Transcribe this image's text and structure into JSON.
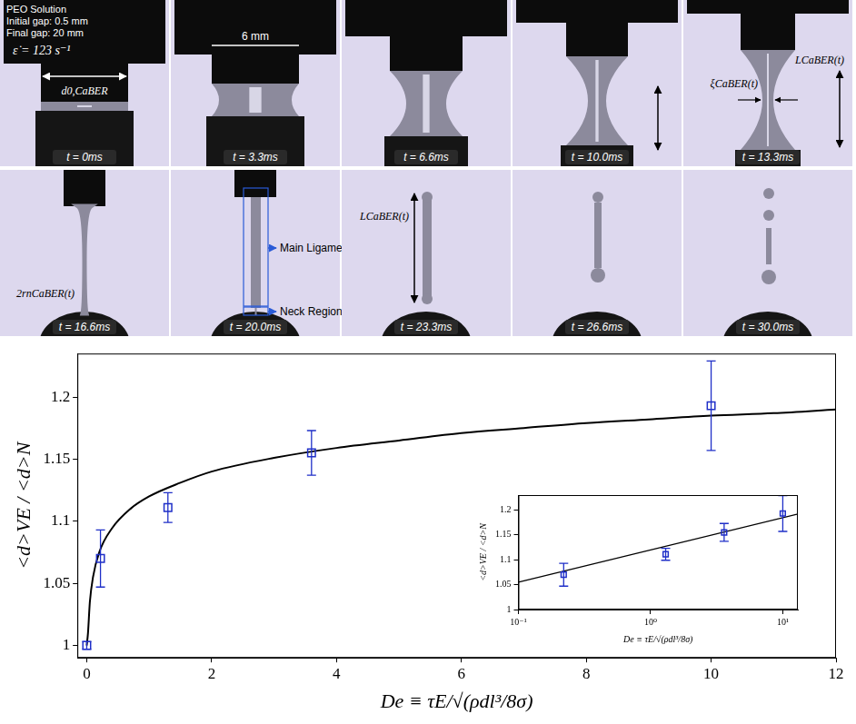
{
  "photos": {
    "header": [
      "PEO Solution",
      "Initial gap: 0.5 mm",
      "Final gap: 20 mm"
    ],
    "strain_rate": "ε̇ = 123 s⁻¹",
    "frames": [
      {
        "time": "t = 0ms",
        "labels": [
          "d0,CaBER"
        ]
      },
      {
        "time": "t = 3.3ms",
        "labels": [
          "6 mm"
        ]
      },
      {
        "time": "t = 6.6ms"
      },
      {
        "time": "t = 10.0ms"
      },
      {
        "time": "t = 13.3ms",
        "labels": [
          "ξCaBER(t)",
          "LCaBER(t)"
        ]
      },
      {
        "time": "t = 16.6ms",
        "labels": [
          "2rnCaBER(t)"
        ]
      },
      {
        "time": "t = 20.0ms",
        "labels": [
          "Main Ligament",
          "Neck Region"
        ]
      },
      {
        "time": "t = 23.3ms",
        "labels": [
          "LCaBER(t)"
        ]
      },
      {
        "time": "t = 26.6ms"
      },
      {
        "time": "t = 30.0ms"
      }
    ]
  },
  "chart_data": [
    {
      "type": "scatter",
      "x_label": "De ≡ τE/√(ρdl³/8σ)",
      "y_label": "<d>VE / <d>N",
      "xlim": [
        -0.15,
        12
      ],
      "xticks": [
        0,
        2,
        4,
        6,
        8,
        10,
        12
      ],
      "ylim": [
        0.99,
        1.235
      ],
      "yticks": [
        1,
        1.05,
        1.1,
        1.15,
        1.2
      ],
      "grid": false,
      "series": [
        {
          "type": "scatter",
          "color": "#1f2fc8",
          "marker": "square",
          "x": [
            0,
            0.22,
            1.3,
            3.6,
            10
          ],
          "values": [
            1.0,
            1.07,
            1.111,
            1.155,
            1.193
          ],
          "error": [
            0.003,
            0.023,
            0.012,
            0.018,
            0.036
          ]
        },
        {
          "type": "line",
          "color": "#000000",
          "line_style": "solid",
          "x": [
            0,
            0.02,
            0.05,
            0.1,
            0.2,
            0.4,
            0.7,
            1,
            1.5,
            2,
            3,
            4,
            5,
            6,
            7,
            8,
            9,
            10,
            11,
            12
          ],
          "values": [
            1.0,
            1.01,
            1.035,
            1.055,
            1.075,
            1.094,
            1.11,
            1.12,
            1.131,
            1.14,
            1.151,
            1.159,
            1.165,
            1.171,
            1.175,
            1.179,
            1.182,
            1.185,
            1.187,
            1.19
          ]
        }
      ]
    },
    {
      "type": "scatter",
      "x_label": "De ≡ τE/√(ρdl³/8σ)",
      "y_label": "<d>VE / <d>N",
      "log": "x",
      "xlim": [
        0.1,
        13
      ],
      "xticks": [
        {
          "value": 0.1,
          "label": "10⁻¹"
        },
        {
          "value": 1,
          "label": "10⁰"
        },
        {
          "value": 10,
          "label": "10¹"
        }
      ],
      "ylim": [
        1,
        1.23
      ],
      "yticks": [
        1,
        1.05,
        1.1,
        1.15,
        1.2
      ],
      "grid": false,
      "series": [
        {
          "type": "scatter",
          "color": "#1f2fc8",
          "marker": "square",
          "x": [
            0.22,
            1.3,
            3.6,
            10
          ],
          "values": [
            1.07,
            1.111,
            1.155,
            1.193
          ],
          "error": [
            0.023,
            0.012,
            0.018,
            0.036
          ]
        },
        {
          "type": "line",
          "color": "#000000",
          "line_style": "solid",
          "x": [
            0.1,
            13
          ],
          "values": [
            1.055,
            1.192
          ]
        }
      ]
    }
  ]
}
